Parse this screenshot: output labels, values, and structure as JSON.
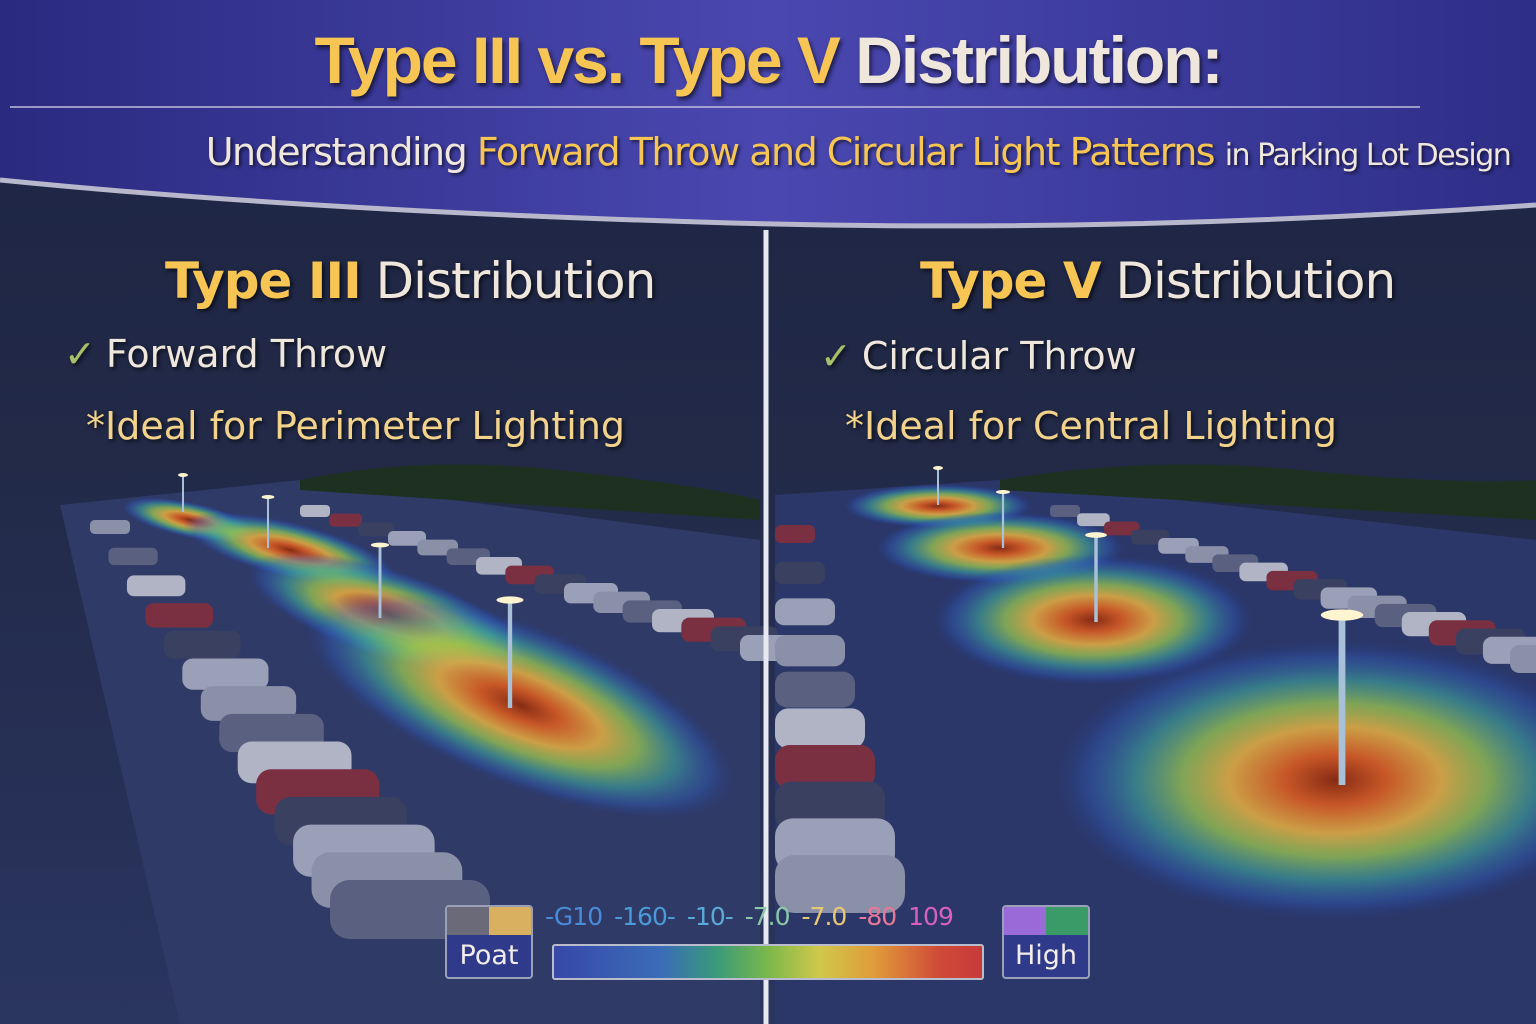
{
  "banner": {
    "title_gold": "Type III vs. Type V",
    "title_cream": "Distribution:",
    "subtitle_start": "Understanding",
    "subtitle_highlight": "Forward Throw and Circular Light Patterns",
    "subtitle_end": "in Parking Lot Design"
  },
  "left_panel": {
    "title_bold": "Type III",
    "title_rest": "Distribution",
    "check_icon": "checkmark-icon",
    "feature": "Forward Throw",
    "ideal": "*Ideal for Perimeter Lighting"
  },
  "right_panel": {
    "title_bold": "Type V",
    "title_rest": "Distribution",
    "check_icon": "checkmark-icon",
    "feature": "Circular Throw",
    "ideal": "*Ideal for Central Lighting"
  },
  "legend": {
    "low_label": "Poat",
    "high_label": "High",
    "scale_labels": [
      "-G10",
      "-160-",
      "-10-",
      "-7.0",
      "-7.0",
      "-80",
      "109"
    ],
    "scale_colors": [
      "#4a8ad8",
      "#4a9ad8",
      "#5aaad8",
      "#8ac8a8",
      "#e8c870",
      "#e87898",
      "#d860c0"
    ],
    "gradient_colors": [
      "#3848a8",
      "#3a9a7a",
      "#7ab84a",
      "#d0c84a",
      "#e09a3a",
      "#c83a3a"
    ]
  }
}
